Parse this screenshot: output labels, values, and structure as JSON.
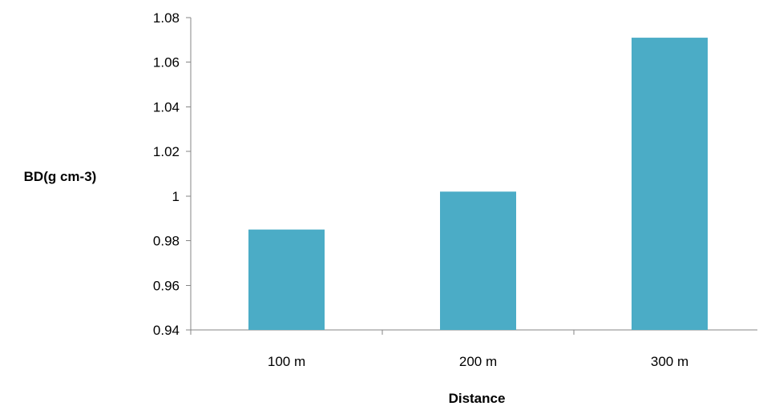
{
  "chart_data": {
    "type": "bar",
    "title": "",
    "xlabel": "Distance",
    "ylabel": "BD(g cm-3)",
    "categories": [
      "100 m",
      "200 m",
      "300 m"
    ],
    "values": [
      0.985,
      1.002,
      1.071
    ],
    "ylim": [
      0.94,
      1.08
    ],
    "yticks": [
      "0.94",
      "0.96",
      "0.98",
      "1",
      "1.02",
      "1.04",
      "1.06",
      "1.08"
    ],
    "grid": false,
    "legend": "none",
    "bar_color": "#4bacc6",
    "axis_color": "#868686"
  }
}
